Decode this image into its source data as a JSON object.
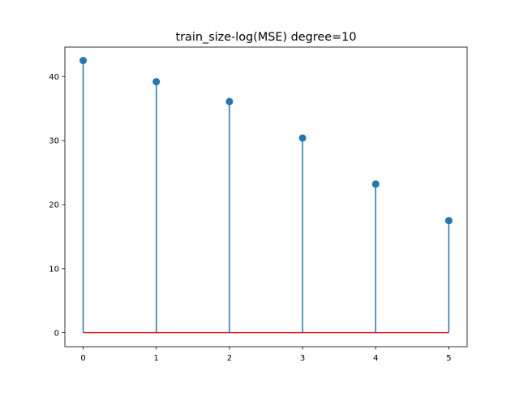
{
  "chart_data": {
    "type": "stem",
    "title": "train_size-log(MSE) degree=10",
    "xlabel": "",
    "ylabel": "",
    "x": [
      0,
      1,
      2,
      3,
      4,
      5
    ],
    "y": [
      42.5,
      39.2,
      36.1,
      30.4,
      23.2,
      17.5
    ],
    "baseline": 0,
    "xlim": [
      -0.25,
      5.25
    ],
    "ylim": [
      -2.2,
      44.6
    ],
    "xticks": [
      0,
      1,
      2,
      3,
      4,
      5
    ],
    "yticks": [
      0,
      10,
      20,
      30,
      40
    ],
    "grid": false,
    "legend": "none",
    "colors": {
      "stem": "#1f77b4",
      "marker": "#1f77b4",
      "baseline": "#d62728"
    }
  }
}
